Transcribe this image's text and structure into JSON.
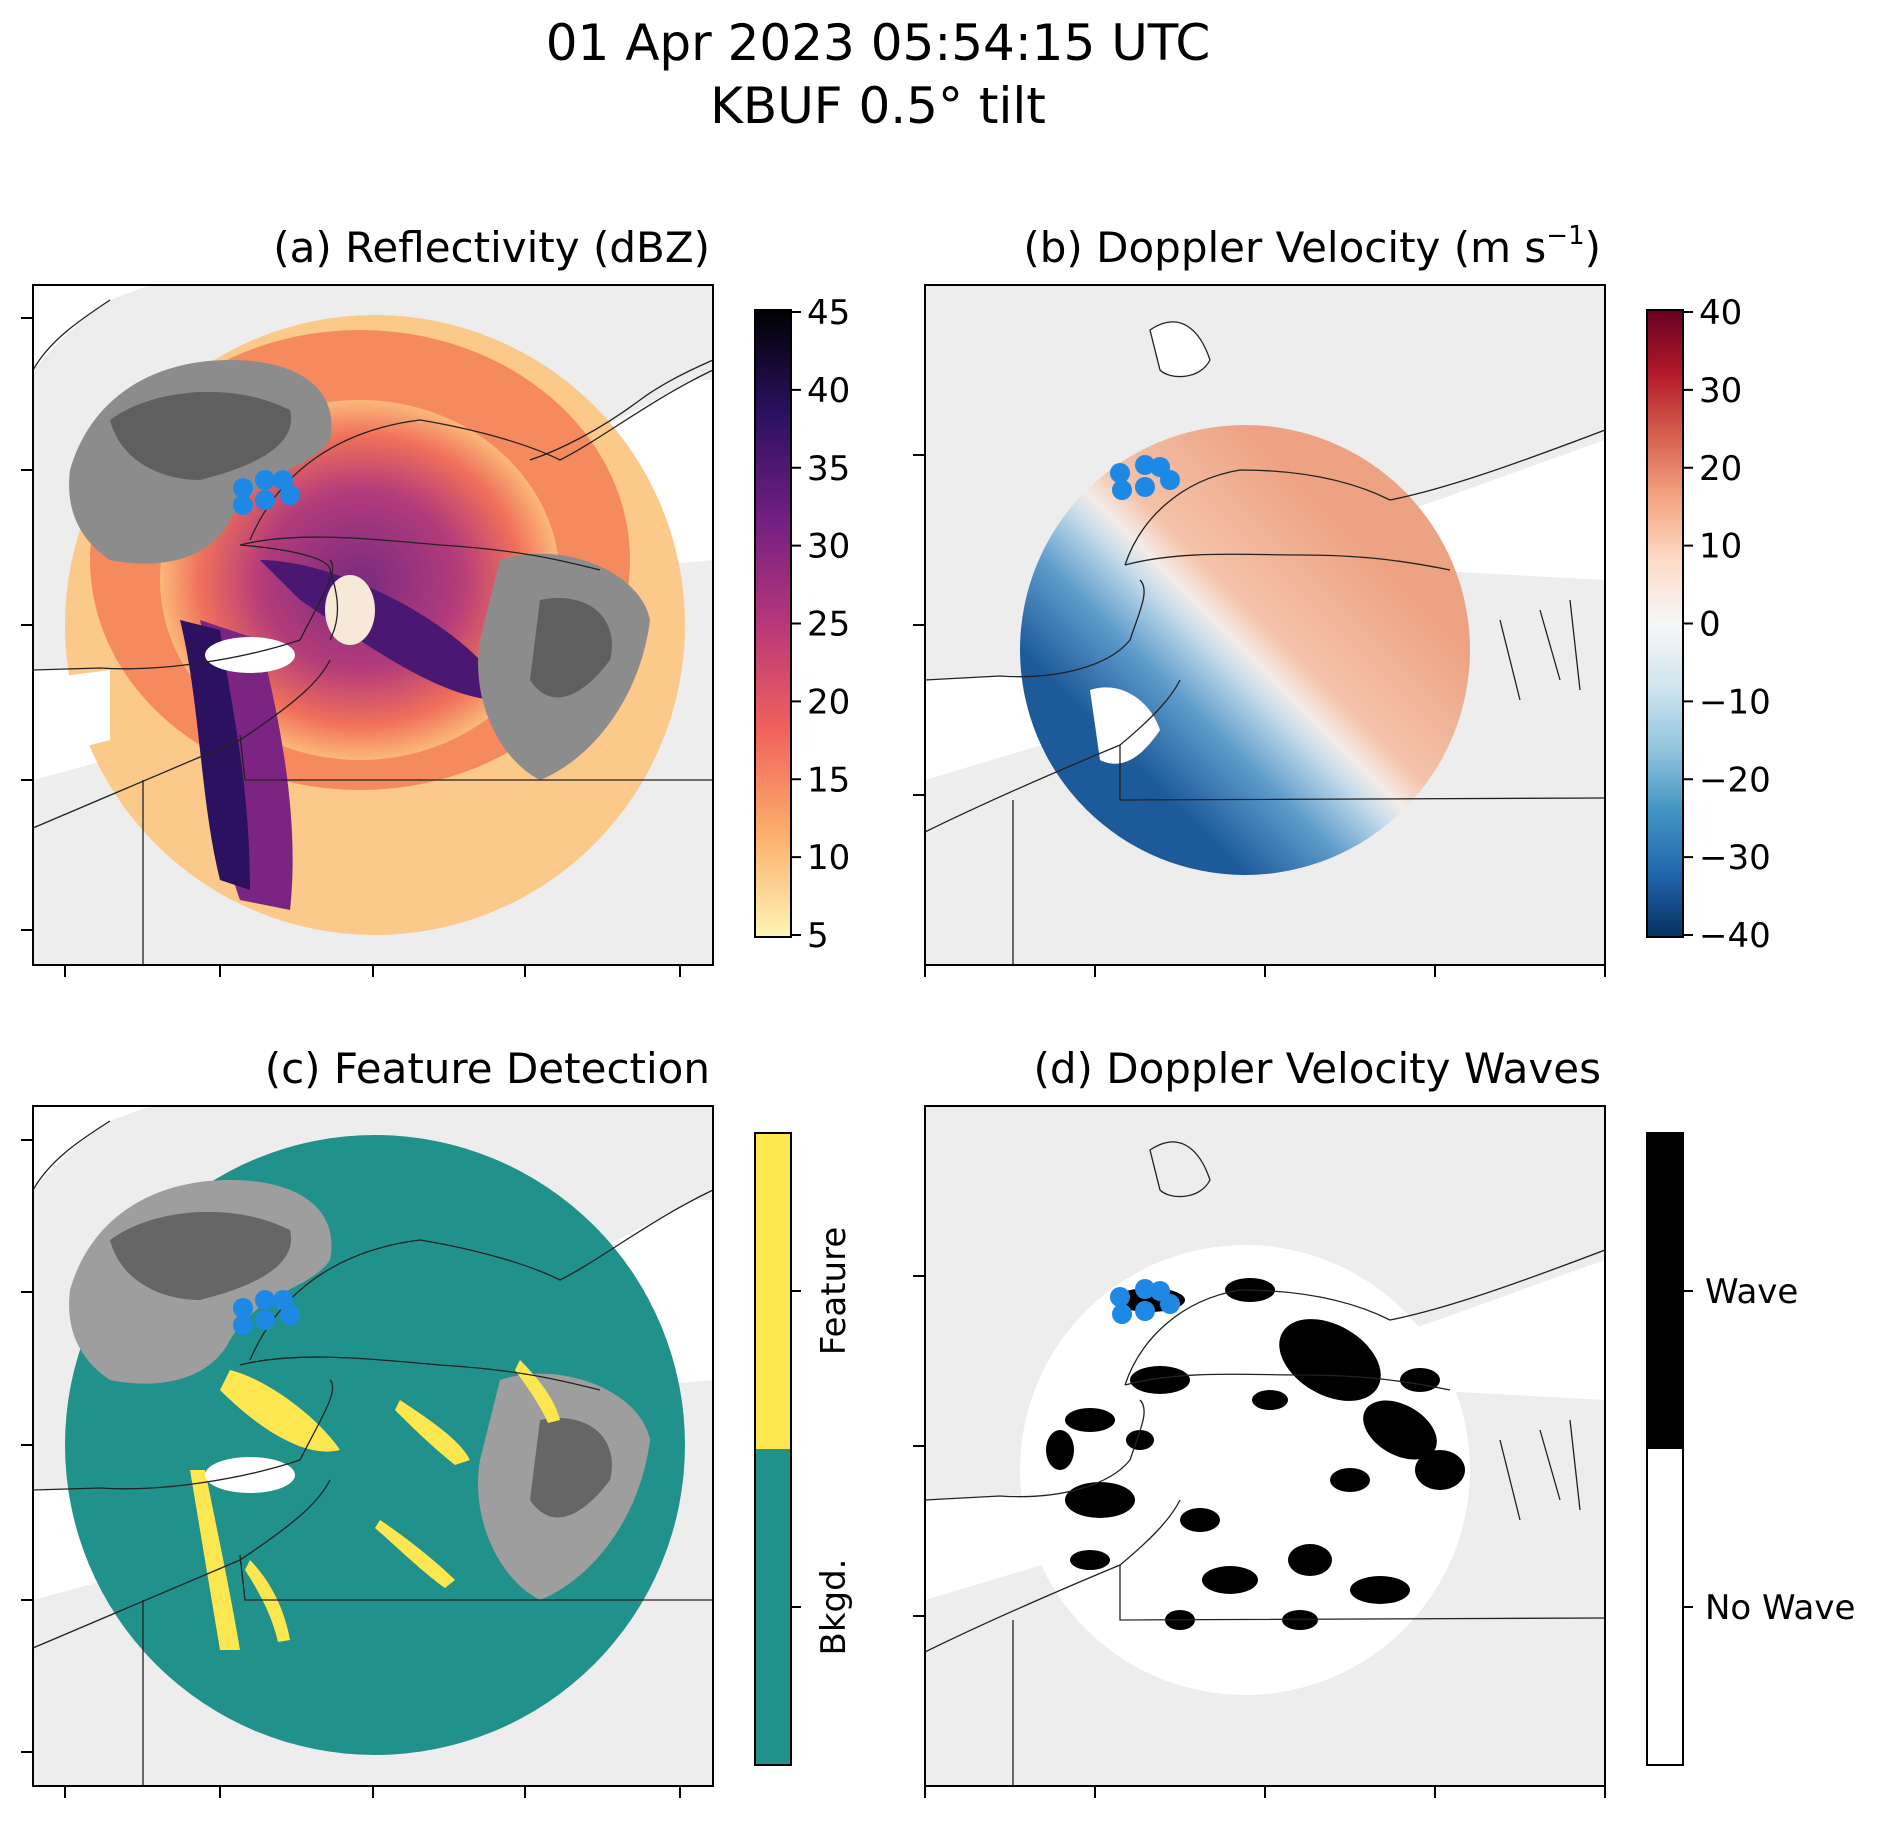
{
  "figure": {
    "title_line1": "01 Apr 2023 05:54:15 UTC",
    "title_line2": "KBUF 0.5° tilt"
  },
  "panels": [
    {
      "id": "a",
      "title": "(a) Reflectivity (dBZ)",
      "colorbar": {
        "type": "continuous",
        "colors": [
          "#fdf4b8",
          "#fcae6a",
          "#f1605d",
          "#b73779",
          "#721f81",
          "#2c115f",
          "#000004"
        ],
        "ticks": [
          "45",
          "40",
          "35",
          "30",
          "25",
          "20",
          "15",
          "10",
          "5"
        ]
      }
    },
    {
      "id": "b",
      "title_main": "(b) Doppler Velocity (m s",
      "title_sup": "−1",
      "title_end": ")",
      "colorbar": {
        "type": "continuous",
        "colors": [
          "#67001f",
          "#b2182b",
          "#d6604d",
          "#f4a582",
          "#fddbc7",
          "#f7f7f7",
          "#d1e5f0",
          "#92c5de",
          "#4393c3",
          "#2166ac",
          "#053061"
        ],
        "ticks": [
          "40",
          "30",
          "20",
          "10",
          "0",
          "−10",
          "−20",
          "−30",
          "−40"
        ]
      }
    },
    {
      "id": "c",
      "title": "(c) Feature Detection",
      "colorbar": {
        "type": "categorical",
        "categories": [
          {
            "label": "Feature",
            "color": "#fde750"
          },
          {
            "label": "Bkgd.",
            "color": "#21918c"
          }
        ]
      }
    },
    {
      "id": "d",
      "title": "(d) Doppler Velocity Waves",
      "colorbar": {
        "type": "categorical",
        "categories": [
          {
            "label": "Wave",
            "color": "#000000"
          },
          {
            "label": "No Wave",
            "color": "#ffffff"
          }
        ]
      }
    }
  ],
  "colors": {
    "background": "#ededed",
    "land_white": "#ffffff",
    "marker_blue": "#1e88e5",
    "ref_gray_light": "#a9a9a9",
    "ref_gray_dark": "#5f5f5f",
    "feat_gray_light": "#9e9e9e",
    "feat_gray_dark": "#666666"
  }
}
